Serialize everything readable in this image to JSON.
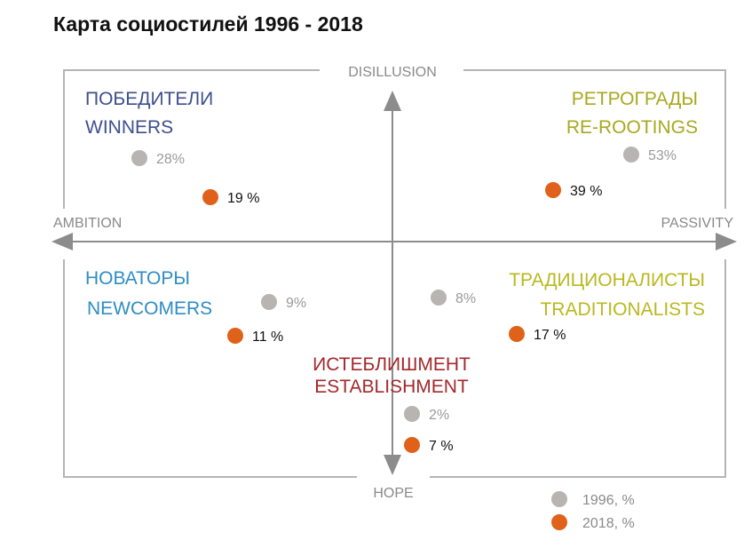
{
  "title": "Карта социостилей 1996 - 2018",
  "axes": {
    "top": "DISILLUSION",
    "bottom": "HOPE",
    "left": "AMBITION",
    "right": "PASSIVITY"
  },
  "colors": {
    "frame": "#b5b5b5",
    "arrow": "#8c8c8c",
    "dot_1996": "#b7b4b1",
    "dot_2018": "#e0621a",
    "winners": "#3d4f8e",
    "rerootings": "#a9a81f",
    "newcomers": "#2e8dc4",
    "traditionalists": "#b9b820",
    "establishment": "#a3282c"
  },
  "groups": {
    "winners": {
      "ru": "ПОБЕДИТЕЛИ",
      "en": "WINNERS",
      "pct_1996": "28%",
      "pct_2018": "19 %"
    },
    "rerootings": {
      "ru": "РЕТРОГРАДЫ",
      "en": "RE-ROOTINGS",
      "pct_1996": "53%",
      "pct_2018": "39 %"
    },
    "newcomers": {
      "ru": "НОВАТОРЫ",
      "en": "NEWCOMERS",
      "pct_1996": "9%",
      "pct_2018": "11 %"
    },
    "traditionalists": {
      "ru": "ТРАДИЦИОНАЛИСТЫ",
      "en": "TRADITIONALISTS",
      "pct_1996": "8%",
      "pct_2018": "17 %"
    },
    "establishment": {
      "ru": "ИСТЕБЛИШМЕНТ",
      "en": "ESTABLISHMENT",
      "pct_1996": "2%",
      "pct_2018": "7 %"
    }
  },
  "legend": {
    "item_1996": "1996, %",
    "item_2018": "2018, %"
  }
}
